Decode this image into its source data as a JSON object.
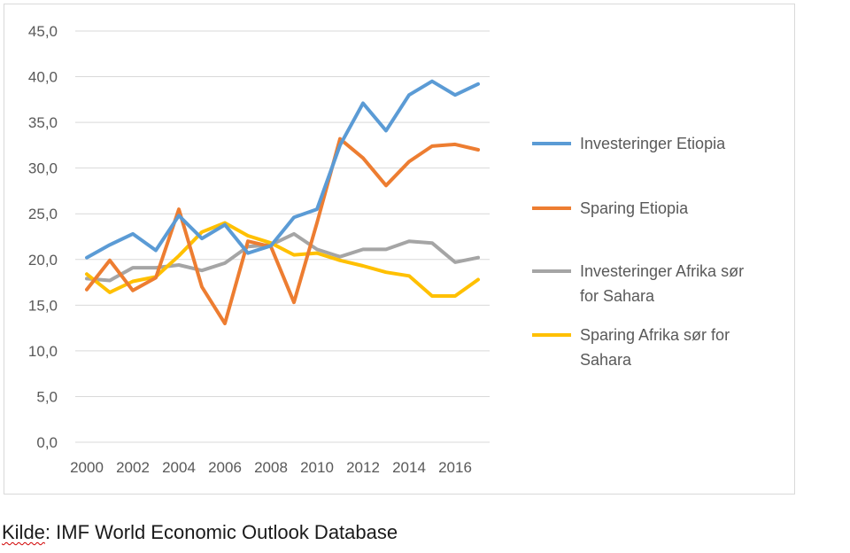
{
  "source": {
    "prefix": "Kilde",
    "rest": ": IMF World Economic Outlook Database"
  },
  "chart_data": {
    "type": "line",
    "title": "",
    "xlabel": "",
    "ylabel": "",
    "ylim": [
      0,
      45
    ],
    "yticks": [
      "0,0",
      "5,0",
      "10,0",
      "15,0",
      "20,0",
      "25,0",
      "30,0",
      "35,0",
      "40,0",
      "45,0"
    ],
    "xtick_labels": [
      "2000",
      "2002",
      "2004",
      "2006",
      "2008",
      "2010",
      "2012",
      "2014",
      "2016"
    ],
    "x": [
      2000,
      2001,
      2002,
      2003,
      2004,
      2005,
      2006,
      2007,
      2008,
      2009,
      2010,
      2011,
      2012,
      2013,
      2014,
      2015,
      2016,
      2017
    ],
    "grid": "horizontal",
    "legend_position": "right",
    "series": [
      {
        "name": "Investeringer Etiopia",
        "color": "#5b9bd5",
        "values": [
          20.2,
          21.6,
          22.8,
          21.0,
          24.8,
          22.3,
          23.8,
          20.7,
          21.5,
          24.6,
          25.5,
          32.5,
          37.1,
          34.1,
          38.0,
          39.5,
          38.0,
          39.2
        ]
      },
      {
        "name": "Sparing Etiopia",
        "color": "#ed7d31",
        "values": [
          16.7,
          19.9,
          16.6,
          18.0,
          25.5,
          17.0,
          13.0,
          22.0,
          21.4,
          15.3,
          24.0,
          33.2,
          31.1,
          28.1,
          30.7,
          32.4,
          32.6,
          32.0
        ]
      },
      {
        "name": "Investeringer Afrika sør for Sahara",
        "color": "#a5a5a5",
        "values": [
          17.9,
          17.7,
          19.1,
          19.1,
          19.4,
          18.8,
          19.6,
          21.4,
          21.6,
          22.8,
          21.1,
          20.3,
          21.1,
          21.1,
          22.0,
          21.8,
          19.7,
          20.2
        ]
      },
      {
        "name": "Sparing Afrika sør for Sahara",
        "color": "#ffc000",
        "values": [
          18.4,
          16.4,
          17.6,
          18.1,
          20.4,
          23.0,
          24.0,
          22.6,
          21.8,
          20.5,
          20.7,
          19.9,
          19.3,
          18.6,
          18.2,
          16.0,
          16.0,
          17.8
        ]
      }
    ]
  }
}
